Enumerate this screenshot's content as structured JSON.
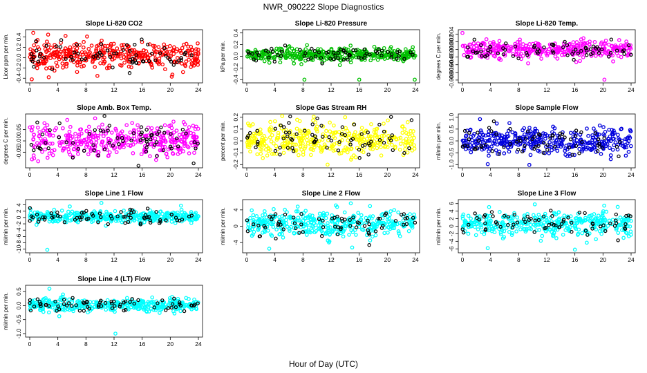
{
  "figure": {
    "title": "NWR_090222  Slope Diagnostics",
    "xlabel": "Hour of Day (UTC)",
    "highlight_color": "#000000"
  },
  "chart_data": [
    {
      "type": "scatter",
      "title": "Slope Li-820 CO2",
      "ylabel": "Licor ppm per min.",
      "color": "#ff0000",
      "xlim": [
        0,
        24
      ],
      "xticks": [
        0,
        4,
        8,
        12,
        16,
        20,
        24
      ],
      "ylim": [
        -0.45,
        0.5
      ],
      "yticks": [
        -0.4,
        -0.2,
        0.0,
        0.2,
        0.4
      ],
      "ytick_labels": [
        "-0.4",
        "-0.2",
        "0.0",
        "0.2",
        "0.4"
      ],
      "center": 0.05,
      "spread": 0.12,
      "outliers": [
        [
          0.3,
          -0.42
        ],
        [
          0.5,
          0.48
        ],
        [
          2.7,
          -0.38
        ],
        [
          5.1,
          0.42
        ],
        [
          20.3,
          -0.33
        ]
      ]
    },
    {
      "type": "scatter",
      "title": "Slope Li-820 Pressure",
      "ylabel": "kPa per min.",
      "color": "#00c000",
      "xlim": [
        0,
        24
      ],
      "xticks": [
        0,
        4,
        8,
        12,
        16,
        20,
        24
      ],
      "ylim": [
        -0.42,
        0.42
      ],
      "yticks": [
        -0.4,
        -0.2,
        0.0,
        0.2,
        0.4
      ],
      "ytick_labels": [
        "-0.4",
        "-0.2",
        "0.0",
        "0.2",
        "0.4"
      ],
      "center": 0.03,
      "spread": 0.06,
      "outliers": [
        [
          8.2,
          -0.4
        ],
        [
          16.0,
          -0.4
        ],
        [
          23.9,
          -0.4
        ]
      ]
    },
    {
      "type": "scatter",
      "title": "Slope Li-820 Temp.",
      "ylabel": "degrees C per min.",
      "color": "#ff00ff",
      "xlim": [
        0,
        24
      ],
      "xticks": [
        0,
        4,
        8,
        12,
        16,
        20,
        24
      ],
      "ylim": [
        -0.0082,
        0.0046
      ],
      "yticks": [
        -0.008,
        -0.006,
        -0.004,
        -0.002,
        0.0,
        0.002,
        0.004
      ],
      "ytick_labels": [
        "-0.008",
        "-0.006",
        "-0.004",
        "-0.002",
        "0.000",
        "0.002",
        "0.004"
      ],
      "center": 0.0,
      "spread": 0.0011,
      "outliers": [
        [
          0.0,
          0.0043
        ],
        [
          20.2,
          -0.0079
        ],
        [
          16.2,
          -0.0033
        ]
      ]
    },
    {
      "type": "scatter",
      "title": "Slope Amb. Box Temp.",
      "ylabel": "degrees C per min.",
      "color": "#ff00ff",
      "xlim": [
        0,
        24
      ],
      "xticks": [
        0,
        4,
        8,
        12,
        16,
        20,
        24
      ],
      "ylim": [
        -0.11,
        0.11
      ],
      "yticks": [
        -0.05,
        0.0,
        0.05
      ],
      "ytick_labels": [
        "-0.05",
        "0.00",
        "0.05"
      ],
      "center": 0.0,
      "spread": 0.035,
      "outliers": [
        [
          9.3,
          0.1
        ],
        [
          1.2,
          -0.09
        ]
      ]
    },
    {
      "type": "scatter",
      "title": "Slope Gas Stream RH",
      "ylabel": "percent per min.",
      "color": "#ffff00",
      "xlim": [
        0,
        24
      ],
      "xticks": [
        0,
        4,
        8,
        12,
        16,
        20,
        24
      ],
      "ylim": [
        -0.21,
        0.21
      ],
      "yticks": [
        -0.2,
        -0.1,
        0.0,
        0.1,
        0.2
      ],
      "ytick_labels": [
        "-0.2",
        "-0.1",
        "0.0",
        "0.1",
        "0.2"
      ],
      "center": 0.01,
      "spread": 0.07,
      "outliers": [
        [
          11.5,
          -0.2
        ],
        [
          14.0,
          0.2
        ]
      ]
    },
    {
      "type": "scatter",
      "title": "Slope Sample Flow",
      "ylabel": "ml/min per min.",
      "color": "#0000dd",
      "xlim": [
        0,
        24
      ],
      "xticks": [
        0,
        4,
        8,
        12,
        16,
        20,
        24
      ],
      "ylim": [
        -1.05,
        1.05
      ],
      "yticks": [
        -1.0,
        -0.5,
        0.0,
        0.5,
        1.0
      ],
      "ytick_labels": [
        "-1.0",
        "-0.5",
        "0.0",
        "0.5",
        "1.0"
      ],
      "center": 0.0,
      "spread": 0.28,
      "outliers": [
        [
          3.6,
          -0.98
        ],
        [
          2.5,
          0.92
        ]
      ]
    },
    {
      "type": "scatter",
      "title": "Slope Line 1 Flow",
      "ylabel": "ml/min per min.",
      "color": "#00ffff",
      "xlim": [
        0,
        24
      ],
      "xticks": [
        0,
        4,
        8,
        12,
        16,
        20,
        24
      ],
      "ylim": [
        -10.5,
        5
      ],
      "yticks": [
        -10,
        -8,
        -6,
        -4,
        -2,
        0,
        2,
        4
      ],
      "ytick_labels": [
        "-10",
        "-8",
        "-6",
        "-4",
        "-2",
        "0",
        "2",
        "4"
      ],
      "center": 0.2,
      "spread": 0.9,
      "outliers": [
        [
          2.5,
          -10.2
        ],
        [
          10.2,
          4.6
        ]
      ]
    },
    {
      "type": "scatter",
      "title": "Slope Line 2 Flow",
      "ylabel": "ml/min per min.",
      "color": "#00ffff",
      "xlim": [
        0,
        24
      ],
      "xticks": [
        0,
        4,
        8,
        12,
        16,
        20,
        24
      ],
      "ylim": [
        -6,
        6
      ],
      "yticks": [
        -4,
        0,
        4
      ],
      "ytick_labels": [
        "-4",
        "0",
        "4"
      ],
      "center": 0.6,
      "spread": 1.5,
      "outliers": [
        [
          3.2,
          -5.5
        ],
        [
          14.8,
          5.6
        ],
        [
          15.0,
          -5.2
        ]
      ]
    },
    {
      "type": "scatter",
      "title": "Slope Line 3 Flow",
      "ylabel": "ml/min per min.",
      "color": "#00ffff",
      "xlim": [
        0,
        24
      ],
      "xticks": [
        0,
        4,
        8,
        12,
        16,
        20,
        24
      ],
      "ylim": [
        -6.5,
        6.5
      ],
      "yticks": [
        -6,
        -4,
        -2,
        0,
        2,
        4,
        6
      ],
      "ytick_labels": [
        "-6",
        "-4",
        "-2",
        "0",
        "2",
        "4",
        "6"
      ],
      "center": 0.6,
      "spread": 1.6,
      "outliers": [
        [
          3.6,
          -5.8
        ],
        [
          16.0,
          -6.2
        ],
        [
          10.3,
          5.8
        ]
      ]
    },
    {
      "type": "scatter",
      "title": "Slope Line 4 (LT) Flow",
      "ylabel": "ml/min per min.",
      "color": "#00ffff",
      "xlim": [
        0,
        24
      ],
      "xticks": [
        0,
        4,
        8,
        12,
        16,
        20,
        24
      ],
      "ylim": [
        -1.05,
        0.65
      ],
      "yticks": [
        -1.0,
        -0.5,
        0.0,
        0.5
      ],
      "ytick_labels": [
        "-1.0",
        "-0.5",
        "0.0",
        "0.5"
      ],
      "center": 0.02,
      "spread": 0.11,
      "outliers": [
        [
          2.8,
          0.6
        ],
        [
          12.2,
          -1.0
        ],
        [
          4.2,
          -0.38
        ]
      ]
    }
  ]
}
